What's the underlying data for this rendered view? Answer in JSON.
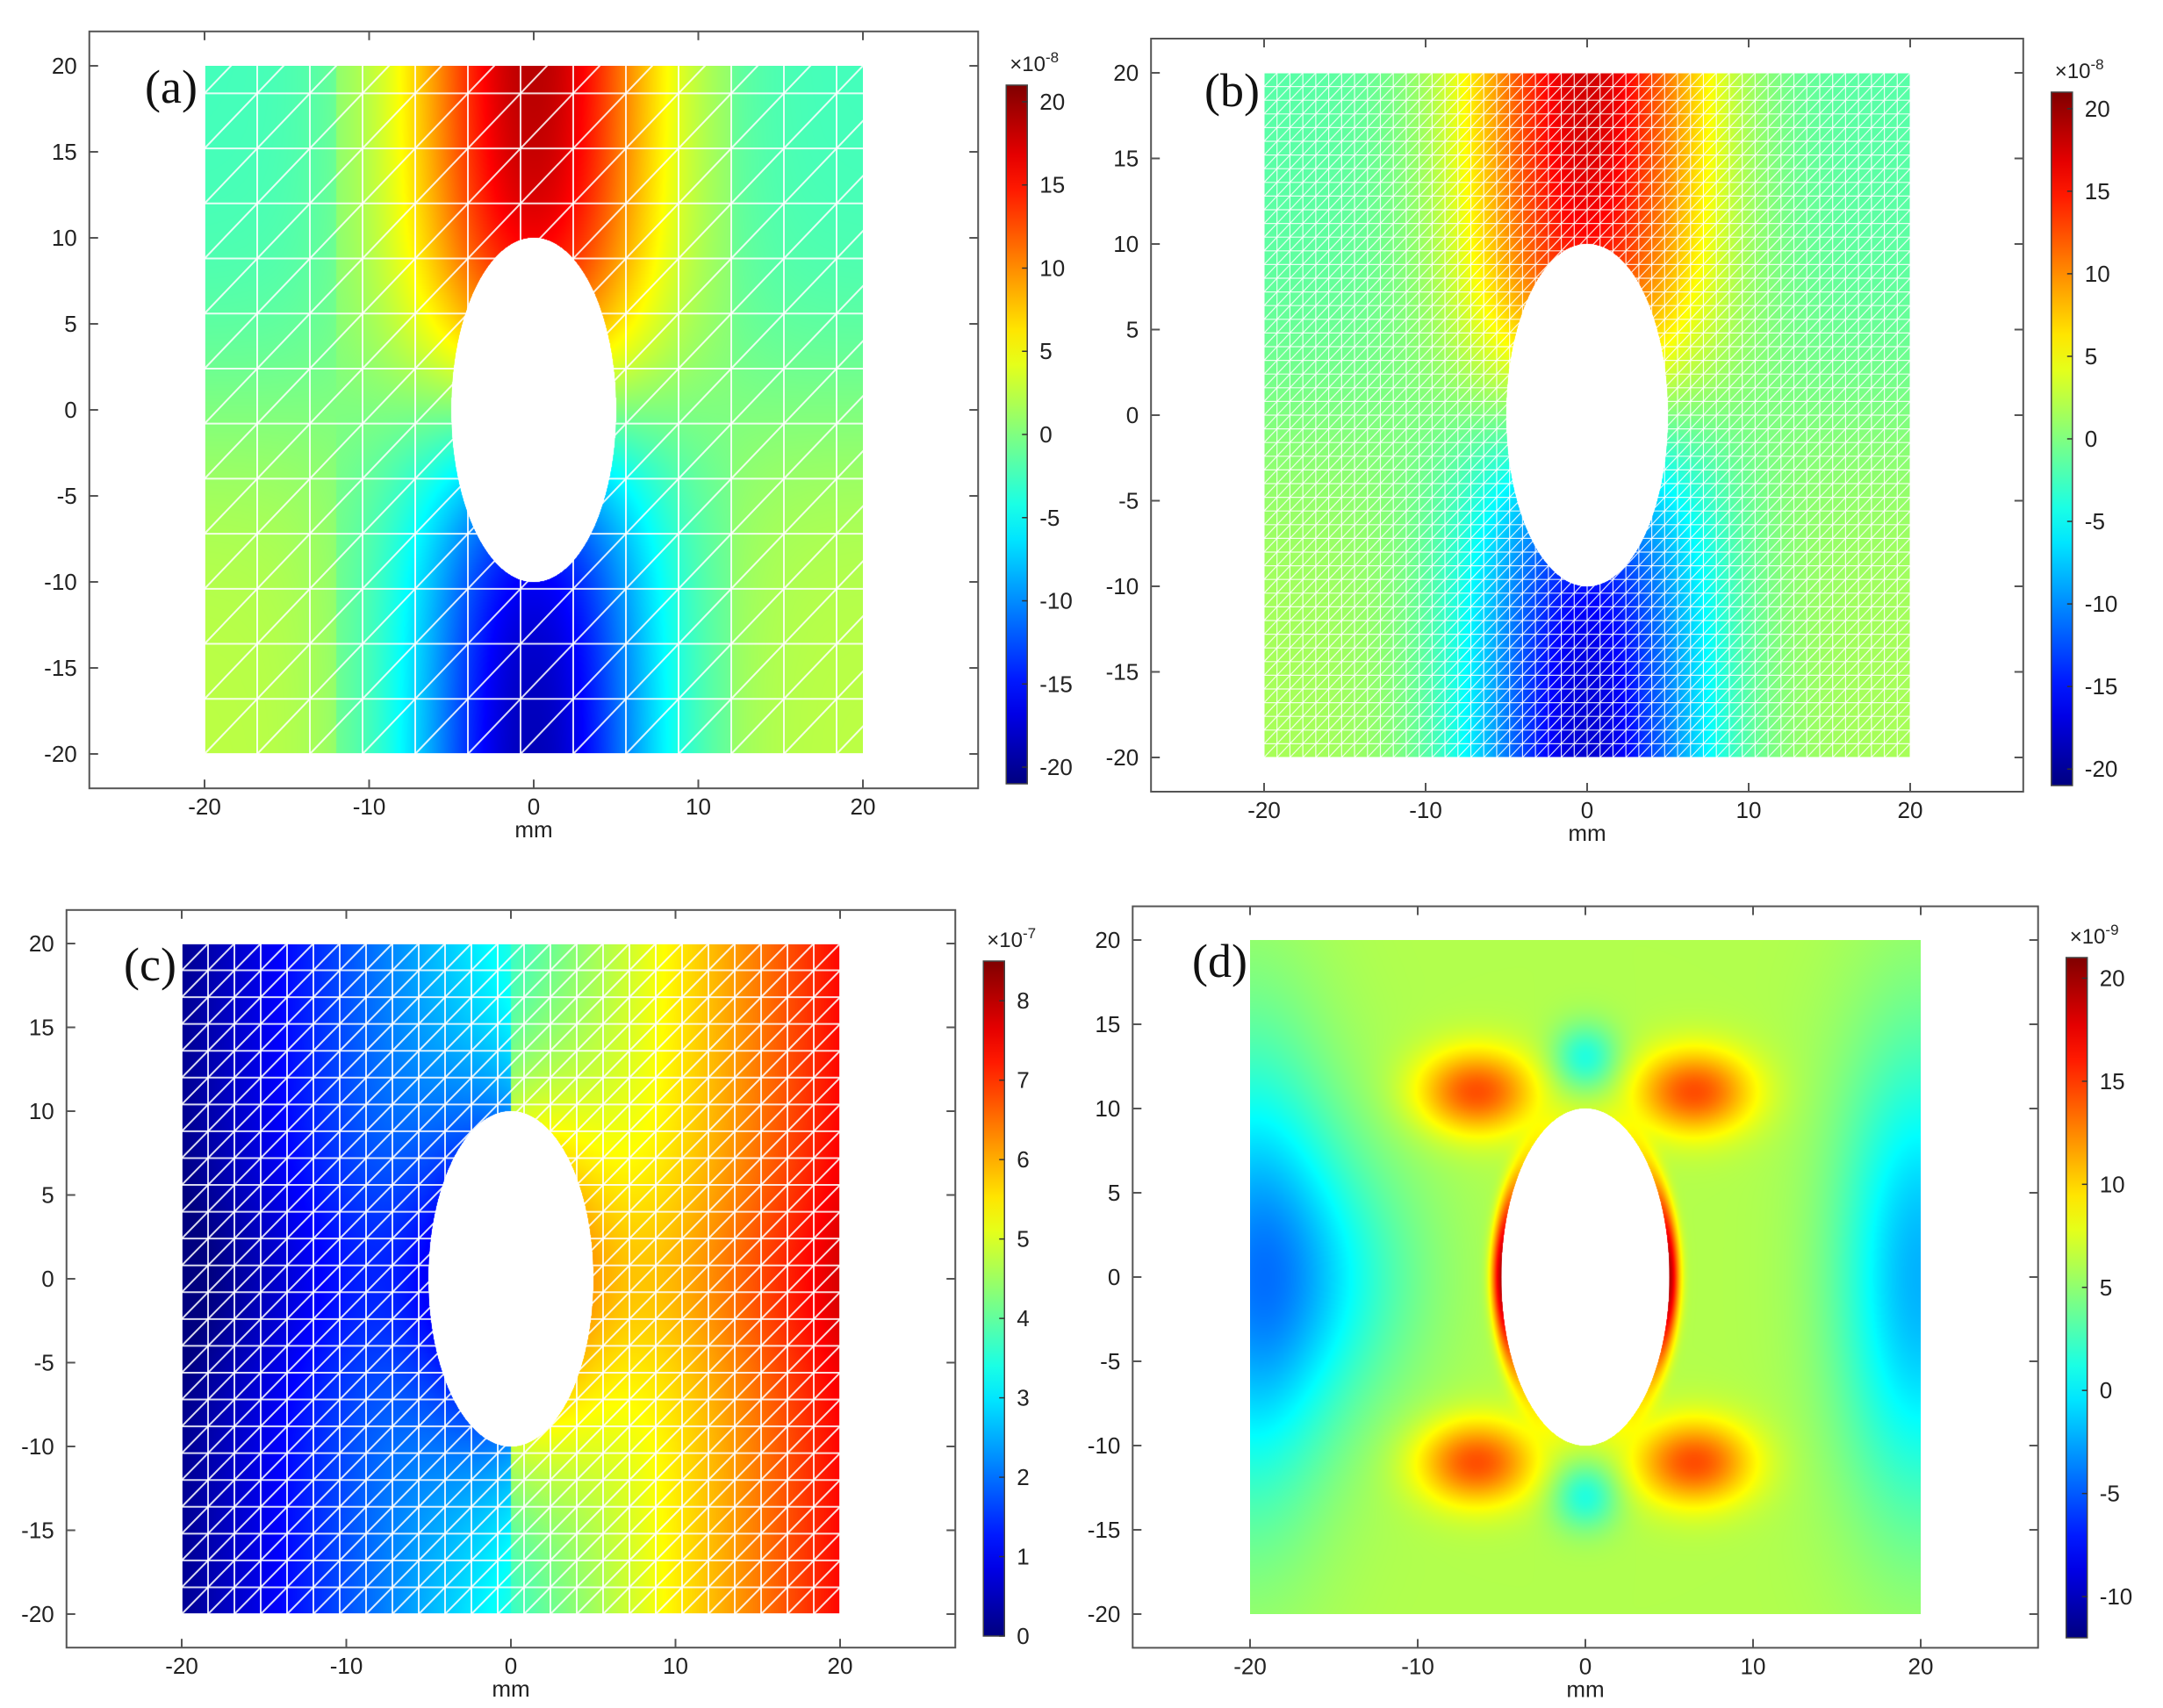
{
  "chart_data": [
    {
      "type": "heatmap",
      "panel_label": "(a)",
      "xlabel": "mm",
      "xlim": [
        -27,
        27
      ],
      "ylim": [
        -22,
        22
      ],
      "x_ticks": [
        "-20",
        "-10",
        "0",
        "10",
        "20"
      ],
      "y_ticks": [
        "20",
        "15",
        "10",
        "5",
        "0",
        "-5",
        "-10",
        "-15",
        "-20"
      ],
      "domain": {
        "x": [
          -20,
          20
        ],
        "y": [
          -20,
          20
        ]
      },
      "hole": {
        "shape": "ellipse",
        "center": [
          0,
          0
        ],
        "semi_axis_x": 5,
        "semi_axis_y": 10
      },
      "field": "top-bottom antisymmetric",
      "mesh": "coarse",
      "colorbar": {
        "multiplier": "×10",
        "exponent": "-8",
        "min": -21,
        "max": 21,
        "ticks": [
          "20",
          "15",
          "10",
          "5",
          "0",
          "-5",
          "-10",
          "-15",
          "-20"
        ],
        "tick_values": [
          20,
          15,
          10,
          5,
          0,
          -5,
          -10,
          -15,
          -20
        ]
      }
    },
    {
      "type": "heatmap",
      "panel_label": "(b)",
      "xlabel": "mm",
      "xlim": [
        -27,
        27
      ],
      "ylim": [
        -22,
        22
      ],
      "x_ticks": [
        "-20",
        "-10",
        "0",
        "10",
        "20"
      ],
      "y_ticks": [
        "20",
        "15",
        "10",
        "5",
        "0",
        "-5",
        "-10",
        "-15",
        "-20"
      ],
      "domain": {
        "x": [
          -20,
          20
        ],
        "y": [
          -20,
          20
        ]
      },
      "hole": {
        "shape": "ellipse",
        "center": [
          0,
          0
        ],
        "semi_axis_x": 5,
        "semi_axis_y": 10
      },
      "field": "top-bottom antisymmetric",
      "mesh": "fine",
      "colorbar": {
        "multiplier": "×10",
        "exponent": "-8",
        "min": -21,
        "max": 21,
        "ticks": [
          "20",
          "15",
          "10",
          "5",
          "0",
          "-5",
          "-10",
          "-15",
          "-20"
        ],
        "tick_values": [
          20,
          15,
          10,
          5,
          0,
          -5,
          -10,
          -15,
          -20
        ]
      }
    },
    {
      "type": "heatmap",
      "panel_label": "(c)",
      "xlabel": "mm",
      "xlim": [
        -27,
        27
      ],
      "ylim": [
        -22,
        22
      ],
      "x_ticks": [
        "-20",
        "-10",
        "0",
        "10",
        "20"
      ],
      "y_ticks": [
        "20",
        "15",
        "10",
        "5",
        "0",
        "-5",
        "-10",
        "-15",
        "-20"
      ],
      "domain": {
        "x": [
          -20,
          20
        ],
        "y": [
          -20,
          20
        ]
      },
      "hole": {
        "shape": "ellipse",
        "center": [
          0,
          0
        ],
        "semi_axis_x": 5,
        "semi_axis_y": 10
      },
      "field": "left-right gradient",
      "mesh": "medium",
      "colorbar": {
        "multiplier": "×10",
        "exponent": "-7",
        "min": 0,
        "max": 8.5,
        "ticks": [
          "8",
          "7",
          "6",
          "5",
          "4",
          "3",
          "2",
          "1",
          "0"
        ],
        "tick_values": [
          8,
          7,
          6,
          5,
          4,
          3,
          2,
          1,
          0
        ]
      }
    },
    {
      "type": "heatmap",
      "panel_label": "(d)",
      "xlabel": "mm",
      "xlim": [
        -27,
        27
      ],
      "ylim": [
        -22,
        22
      ],
      "x_ticks": [
        "-20",
        "-10",
        "0",
        "10",
        "20"
      ],
      "y_ticks": [
        "20",
        "15",
        "10",
        "5",
        "0",
        "-5",
        "-10",
        "-15",
        "-20"
      ],
      "domain": {
        "x": [
          -20,
          20
        ],
        "y": [
          -20,
          20
        ]
      },
      "hole": {
        "shape": "ellipse",
        "center": [
          0,
          0
        ],
        "semi_axis_x": 5,
        "semi_axis_y": 10
      },
      "field": "stress concentration around hole",
      "mesh": "none",
      "colorbar": {
        "multiplier": "×10",
        "exponent": "-9",
        "min": -12,
        "max": 21,
        "ticks": [
          "20",
          "15",
          "10",
          "5",
          "0",
          "-5",
          "-10"
        ],
        "tick_values": [
          20,
          15,
          10,
          5,
          0,
          -5,
          -10
        ]
      }
    }
  ]
}
